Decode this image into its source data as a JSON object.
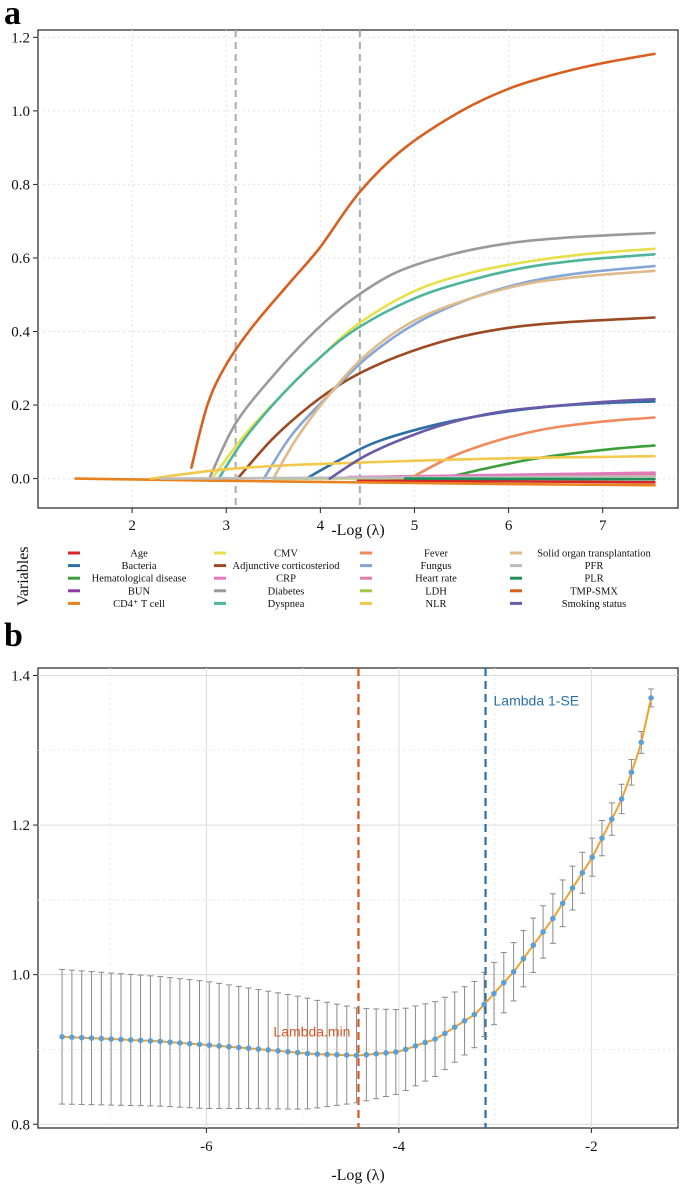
{
  "panel_a": {
    "label": "a",
    "chart_data": {
      "type": "line",
      "title": "",
      "xlabel": "-Log (λ)",
      "ylabel": "",
      "xlim": [
        1.0,
        7.8
      ],
      "ylim": [
        -0.08,
        1.22
      ],
      "xticks": [
        "2",
        "3",
        "4",
        "5",
        "6",
        "7"
      ],
      "yticks": [
        "0.0",
        "0.2",
        "0.4",
        "0.6",
        "0.8",
        "1.0",
        "1.2"
      ],
      "vlines": [
        3.1,
        4.42
      ],
      "vline_color": "#aaaaaa",
      "legend_title": "Variables",
      "series": [
        {
          "name": "Age",
          "color": "#d62728",
          "x": [
            4.4,
            7.55
          ],
          "y": [
            -0.005,
            -0.01
          ]
        },
        {
          "name": "Bacteria",
          "color": "#2f6fa7",
          "x": [
            3.85,
            4.2,
            4.6,
            5.2,
            5.8,
            6.4,
            7.0,
            7.55
          ],
          "y": [
            0.0,
            0.05,
            0.1,
            0.145,
            0.175,
            0.195,
            0.205,
            0.21
          ]
        },
        {
          "name": "Hematological disease",
          "color": "#3a9e3a",
          "x": [
            5.3,
            5.8,
            6.3,
            6.8,
            7.2,
            7.55
          ],
          "y": [
            0.0,
            0.03,
            0.055,
            0.072,
            0.083,
            0.09
          ]
        },
        {
          "name": "BUN",
          "color": "#8c3fa3",
          "x": [
            4.5,
            7.55
          ],
          "y": [
            0.0,
            0.008
          ]
        },
        {
          "name": "CD4⁺ T cell",
          "color": "#e8821e",
          "x": [
            1.4,
            2.2,
            3.0,
            4.0,
            5.0,
            6.0,
            7.55
          ],
          "y": [
            0.0,
            -0.003,
            -0.006,
            -0.009,
            -0.012,
            -0.015,
            -0.018
          ]
        },
        {
          "name": "CMV",
          "color": "#e6e04a",
          "x": [
            2.85,
            3.2,
            3.6,
            4.0,
            4.4,
            5.0,
            5.6,
            6.2,
            6.8,
            7.55
          ],
          "y": [
            0.0,
            0.12,
            0.23,
            0.33,
            0.42,
            0.51,
            0.56,
            0.59,
            0.61,
            0.625
          ]
        },
        {
          "name": "Adjunctive corticosteriod",
          "color": "#9b4a23",
          "x": [
            3.12,
            3.5,
            3.9,
            4.3,
            4.8,
            5.4,
            6.0,
            6.6,
            7.55
          ],
          "y": [
            0.0,
            0.11,
            0.2,
            0.27,
            0.33,
            0.38,
            0.41,
            0.425,
            0.438
          ]
        },
        {
          "name": "CRP",
          "color": "#e377c2",
          "x": [
            4.3,
            7.55
          ],
          "y": [
            0.004,
            0.016
          ]
        },
        {
          "name": "Diabetes",
          "color": "#9a9a9a",
          "x": [
            2.82,
            3.1,
            3.5,
            3.9,
            4.3,
            4.8,
            5.4,
            6.0,
            6.6,
            7.55
          ],
          "y": [
            0.0,
            0.15,
            0.28,
            0.39,
            0.48,
            0.56,
            0.61,
            0.64,
            0.655,
            0.668
          ]
        },
        {
          "name": "Dyspnea",
          "color": "#4db49e",
          "x": [
            2.92,
            3.2,
            3.6,
            4.0,
            4.4,
            5.0,
            5.6,
            6.2,
            6.8,
            7.55
          ],
          "y": [
            0.0,
            0.11,
            0.23,
            0.33,
            0.41,
            0.49,
            0.54,
            0.575,
            0.595,
            0.61
          ]
        },
        {
          "name": "Fever",
          "color": "#f08a5d",
          "x": [
            4.95,
            5.4,
            5.9,
            6.4,
            7.0,
            7.55
          ],
          "y": [
            0.0,
            0.06,
            0.105,
            0.135,
            0.155,
            0.166
          ]
        },
        {
          "name": "Fungus",
          "color": "#86a6d6",
          "x": [
            3.4,
            3.7,
            4.1,
            4.5,
            5.0,
            5.6,
            6.2,
            6.8,
            7.55
          ],
          "y": [
            0.0,
            0.12,
            0.23,
            0.33,
            0.42,
            0.49,
            0.535,
            0.56,
            0.578
          ]
        },
        {
          "name": "Heart rate",
          "color": "#e07aa6",
          "x": [
            4.6,
            7.55
          ],
          "y": [
            0.0,
            0.012
          ]
        },
        {
          "name": "LDH",
          "color": "#a0c94a",
          "x": [
            3.5,
            7.55
          ],
          "y": [
            0.0,
            0.004
          ]
        },
        {
          "name": "NLR",
          "color": "#f2c94c",
          "x": [
            2.2,
            2.8,
            3.4,
            4.0,
            4.6,
            5.2,
            5.8,
            6.4,
            7.0,
            7.55
          ],
          "y": [
            0.0,
            0.02,
            0.033,
            0.04,
            0.045,
            0.05,
            0.054,
            0.057,
            0.059,
            0.061
          ]
        },
        {
          "name": "Solid organ transplantation",
          "color": "#dfbb8c",
          "x": [
            3.5,
            3.75,
            4.1,
            4.5,
            5.0,
            5.6,
            6.2,
            6.8,
            7.55
          ],
          "y": [
            0.0,
            0.11,
            0.23,
            0.34,
            0.43,
            0.49,
            0.53,
            0.55,
            0.565
          ]
        },
        {
          "name": "PFR",
          "color": "#bdbdbd",
          "x": [
            2.3,
            7.55
          ],
          "y": [
            0.0,
            0.006
          ]
        },
        {
          "name": "PLR",
          "color": "#1f8f5a",
          "x": [
            4.9,
            7.55
          ],
          "y": [
            0.0,
            -0.002
          ]
        },
        {
          "name": "TMP-SMX",
          "color": "#d95f1f",
          "x": [
            2.63,
            2.8,
            3.0,
            3.3,
            3.7,
            4.0,
            4.42,
            4.9,
            5.5,
            6.0,
            6.5,
            7.0,
            7.55
          ],
          "y": [
            0.03,
            0.2,
            0.31,
            0.42,
            0.54,
            0.63,
            0.78,
            0.9,
            1.0,
            1.06,
            1.1,
            1.13,
            1.155
          ]
        },
        {
          "name": "Smoking status",
          "color": "#6a5aa8",
          "x": [
            4.1,
            4.5,
            5.0,
            5.5,
            6.0,
            6.6,
            7.1,
            7.55
          ],
          "y": [
            0.0,
            0.065,
            0.12,
            0.16,
            0.185,
            0.2,
            0.21,
            0.216
          ]
        }
      ]
    }
  },
  "panel_b": {
    "label": "b",
    "chart_data": {
      "type": "line",
      "title": "",
      "xlabel": "-Log (λ)",
      "ylabel": "",
      "xlim": [
        -7.75,
        -1.1
      ],
      "ylim": [
        0.795,
        1.41
      ],
      "xticks": [
        "-6",
        "-4",
        "-2"
      ],
      "yticks": [
        "0.8",
        "1.0",
        "1.2",
        "1.4"
      ],
      "lambda_min": -4.42,
      "lambda_1se": -3.1,
      "lambda_min_label": "Lambda.min",
      "lambda_1se_label": "Lambda 1-SE",
      "lambda_min_color": "#d9541e",
      "lambda_1se_color": "#2a6fa8",
      "line_color": "#f0a030",
      "point_color": "#5aa0d8",
      "errorbar_color": "#8a8a8a",
      "x_start": -7.5,
      "x_end": -1.38,
      "n_points": 61,
      "mean_knots_x": [
        -7.5,
        -6.5,
        -5.5,
        -4.9,
        -4.42,
        -4.0,
        -3.6,
        -3.2,
        -2.8,
        -2.4,
        -2.0,
        -1.7,
        -1.5,
        -1.38
      ],
      "mean_knots_y": [
        0.917,
        0.911,
        0.901,
        0.894,
        0.892,
        0.897,
        0.915,
        0.948,
        1.005,
        1.075,
        1.155,
        1.23,
        1.3,
        1.37
      ],
      "se_knots_x": [
        -7.5,
        -6.0,
        -5.0,
        -4.42,
        -3.5,
        -2.5,
        -1.7,
        -1.38
      ],
      "se_knots_y": [
        0.09,
        0.085,
        0.075,
        0.063,
        0.048,
        0.035,
        0.02,
        0.012
      ]
    }
  }
}
